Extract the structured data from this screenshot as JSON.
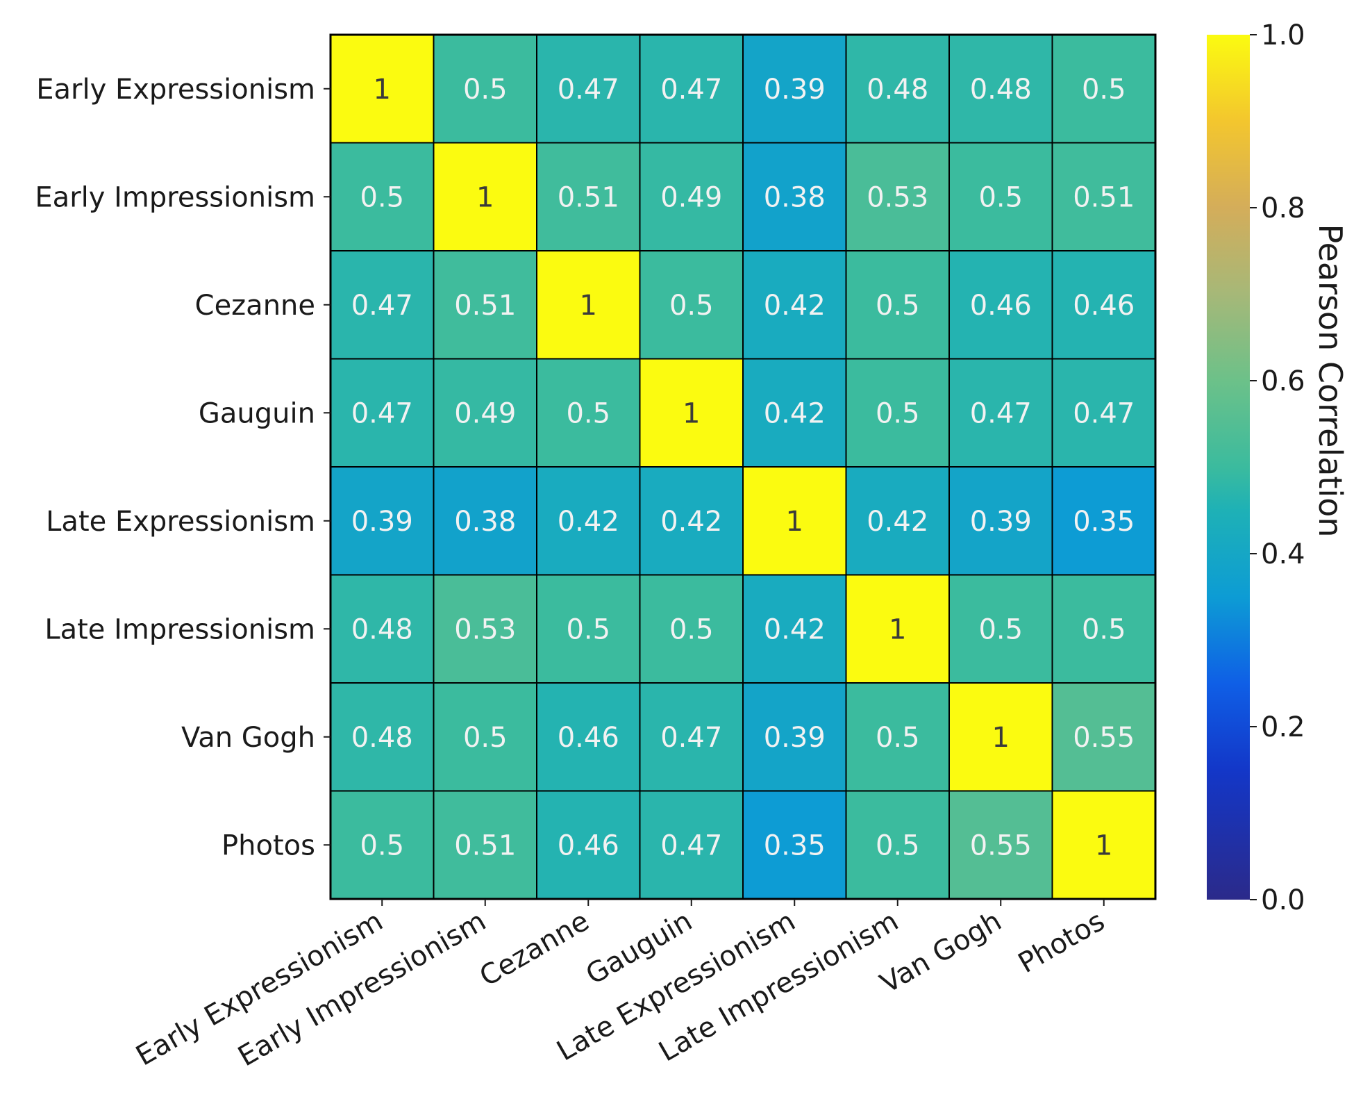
{
  "chart_data": {
    "type": "heatmap",
    "title": "",
    "row_labels": [
      "Early Expressionism",
      "Early Impressionism",
      "Cezanne",
      "Gauguin",
      "Late Expressionism",
      "Late Impressionism",
      "Van Gogh",
      "Photos"
    ],
    "col_labels": [
      "Early Expressionism",
      "Early Impressionism",
      "Cezanne",
      "Gauguin",
      "Late Expressionism",
      "Late Impressionism",
      "Van Gogh",
      "Photos"
    ],
    "values": [
      [
        1,
        0.5,
        0.47,
        0.47,
        0.39,
        0.48,
        0.48,
        0.5
      ],
      [
        0.5,
        1,
        0.51,
        0.49,
        0.38,
        0.53,
        0.5,
        0.51
      ],
      [
        0.47,
        0.51,
        1,
        0.5,
        0.42,
        0.5,
        0.46,
        0.46
      ],
      [
        0.47,
        0.49,
        0.5,
        1,
        0.42,
        0.5,
        0.47,
        0.47
      ],
      [
        0.39,
        0.38,
        0.42,
        0.42,
        1,
        0.42,
        0.39,
        0.35
      ],
      [
        0.48,
        0.53,
        0.5,
        0.5,
        0.42,
        1,
        0.5,
        0.5
      ],
      [
        0.48,
        0.5,
        0.46,
        0.47,
        0.39,
        0.5,
        1,
        0.55
      ],
      [
        0.5,
        0.51,
        0.46,
        0.47,
        0.35,
        0.5,
        0.55,
        1
      ]
    ],
    "colorbar": {
      "label": "Pearson Correlation",
      "range": [
        0.0,
        1.0
      ],
      "ticks": [
        "0.0",
        "0.2",
        "0.4",
        "0.6",
        "0.8",
        "1.0"
      ]
    },
    "colormap": [
      {
        "v": 0.0,
        "c": "#2b2a8a"
      },
      {
        "v": 0.15,
        "c": "#1337c8"
      },
      {
        "v": 0.25,
        "c": "#0f5fe6"
      },
      {
        "v": 0.35,
        "c": "#0d9cd4"
      },
      {
        "v": 0.45,
        "c": "#1eb1b6"
      },
      {
        "v": 0.5,
        "c": "#3bbb9e"
      },
      {
        "v": 0.6,
        "c": "#6cc189"
      },
      {
        "v": 0.7,
        "c": "#a6b878"
      },
      {
        "v": 0.8,
        "c": "#d4ad5a"
      },
      {
        "v": 0.9,
        "c": "#f3c62e"
      },
      {
        "v": 1.0,
        "c": "#fbfb10"
      }
    ],
    "text_colors": {
      "light": "#f2f2f2",
      "dark": "#3a3a3a"
    },
    "grid_color": "#000000"
  }
}
